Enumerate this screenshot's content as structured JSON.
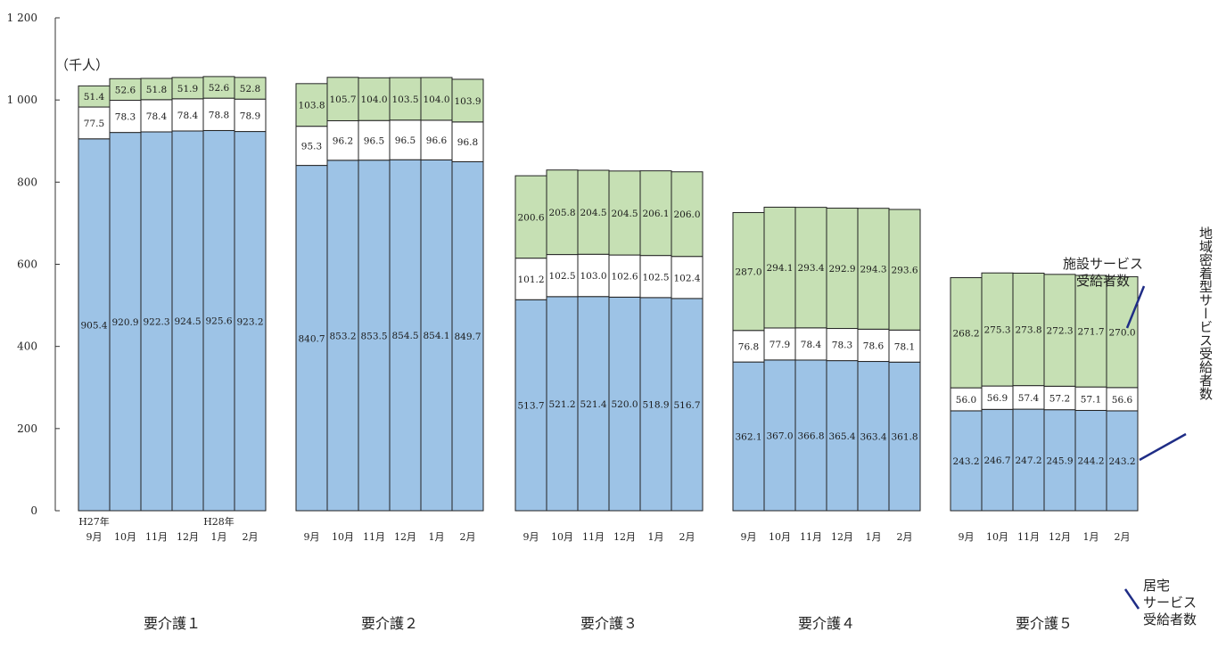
{
  "chart_data": {
    "type": "bar",
    "stacked": true,
    "unit_label": "（千人）",
    "y_ticks": [
      "0",
      "200",
      "400",
      "600",
      "800",
      "1 000",
      "1 200"
    ],
    "ylim": [
      0,
      1200
    ],
    "grid": false,
    "groups": [
      {
        "name": "要介護１",
        "months": [
          "9月",
          "10月",
          "11月",
          "12月",
          "1月",
          "2月"
        ],
        "era_labels": [
          "H27年",
          "",
          "",
          "",
          "H28年",
          ""
        ],
        "home": [
          905.4,
          920.9,
          922.3,
          924.5,
          925.6,
          923.2
        ],
        "community": [
          77.5,
          78.3,
          78.4,
          78.4,
          78.8,
          78.9
        ],
        "facility": [
          51.4,
          52.6,
          51.8,
          51.9,
          52.6,
          52.8
        ]
      },
      {
        "name": "要介護２",
        "months": [
          "9月",
          "10月",
          "11月",
          "12月",
          "1月",
          "2月"
        ],
        "home": [
          840.7,
          853.2,
          853.5,
          854.5,
          854.1,
          849.7
        ],
        "community": [
          95.3,
          96.2,
          96.5,
          96.5,
          96.6,
          96.8
        ],
        "facility": [
          103.8,
          105.7,
          104.0,
          103.5,
          104.0,
          103.9
        ]
      },
      {
        "name": "要介護３",
        "months": [
          "9月",
          "10月",
          "11月",
          "12月",
          "1月",
          "2月"
        ],
        "home": [
          513.7,
          521.2,
          521.4,
          520.0,
          518.9,
          516.7
        ],
        "community": [
          101.2,
          102.5,
          103.0,
          102.6,
          102.5,
          102.4
        ],
        "facility": [
          200.6,
          205.8,
          204.5,
          204.5,
          206.1,
          206.0
        ]
      },
      {
        "name": "要介護４",
        "months": [
          "9月",
          "10月",
          "11月",
          "12月",
          "1月",
          "2月"
        ],
        "home": [
          362.1,
          367.0,
          366.8,
          365.4,
          363.4,
          361.8
        ],
        "community": [
          76.8,
          77.9,
          78.4,
          78.3,
          78.6,
          78.1
        ],
        "facility": [
          287.0,
          294.1,
          293.4,
          292.9,
          294.3,
          293.6
        ]
      },
      {
        "name": "要介護５",
        "months": [
          "9月",
          "10月",
          "11月",
          "12月",
          "1月",
          "2月"
        ],
        "home": [
          243.2,
          246.7,
          247.2,
          245.9,
          244.2,
          243.2
        ],
        "community": [
          56.0,
          56.9,
          57.4,
          57.2,
          57.1,
          56.6
        ],
        "facility": [
          268.2,
          275.3,
          273.8,
          272.3,
          271.7,
          270.0
        ]
      }
    ],
    "series_colors": {
      "home": "#9dc3e6",
      "community": "#ffffff",
      "facility": "#c6e0b4"
    }
  },
  "annotations": {
    "facility": [
      "施設サービス",
      "受給者数"
    ],
    "community": "地域密着型サービス受給者数",
    "home": [
      "居宅",
      "サービス",
      "受給者数"
    ]
  }
}
